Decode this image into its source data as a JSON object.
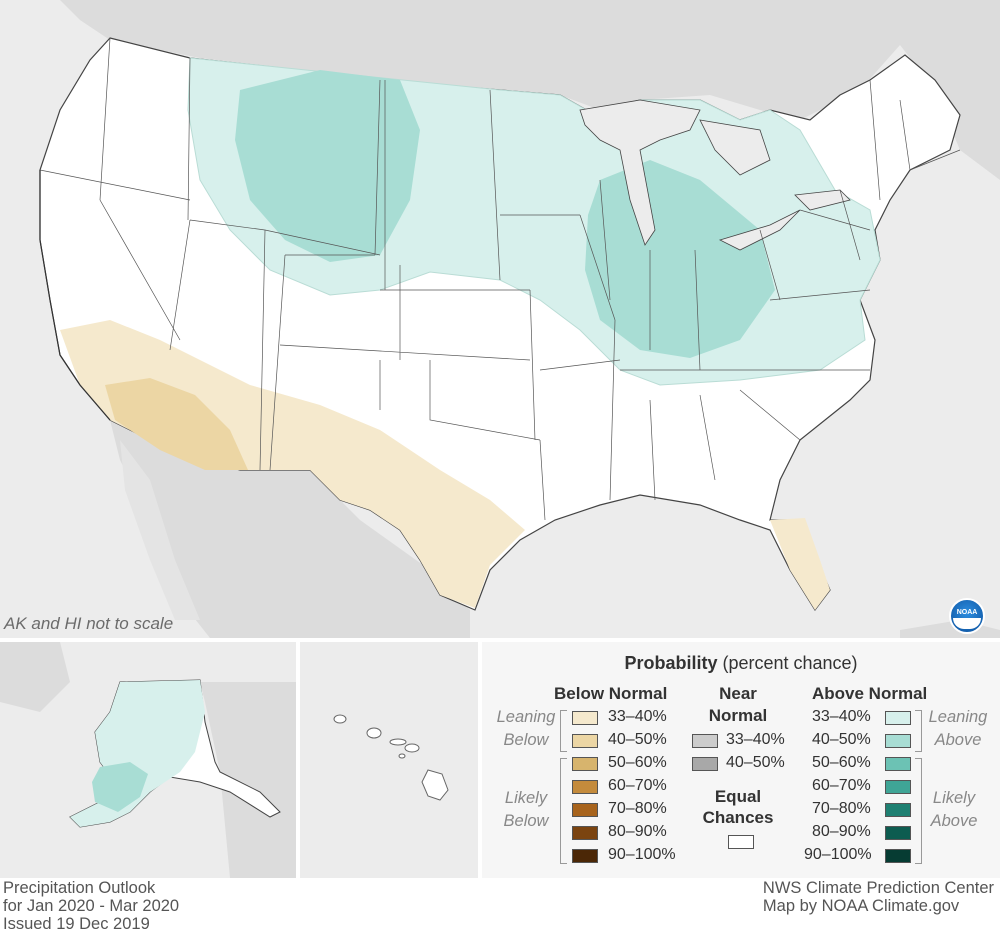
{
  "map": {
    "scale_note": "AK and HI not to scale",
    "logo_text": "NOAA"
  },
  "legend": {
    "title_bold": "Probability",
    "title_rest": "(percent chance)",
    "below": {
      "header": "Below Normal",
      "items": [
        "33–40%",
        "40–50%",
        "50–60%",
        "60–70%",
        "70–80%",
        "80–90%",
        "90–100%"
      ],
      "colors": [
        "#f5e9cd",
        "#ecd6a4",
        "#d7b46d",
        "#c48b3c",
        "#a8641d",
        "#7b4410",
        "#4b2706"
      ],
      "leaning_label": [
        "Leaning",
        "Below"
      ],
      "likely_label": [
        "Likely",
        "Below"
      ]
    },
    "near": {
      "header": [
        "Near",
        "Normal"
      ],
      "items": [
        "33–40%",
        "40–50%"
      ],
      "colors": [
        "#cccccc",
        "#a8a8a8"
      ],
      "equal_label": [
        "Equal",
        "Chances"
      ],
      "equal_color": "#ffffff"
    },
    "above": {
      "header": "Above Normal",
      "items": [
        "33–40%",
        "40–50%",
        "50–60%",
        "60–70%",
        "70–80%",
        "80–90%",
        "90–100%"
      ],
      "colors": [
        "#d7f0ec",
        "#a8ddd4",
        "#6cc2b4",
        "#3fa596",
        "#1f8072",
        "#0d5c50",
        "#063c33"
      ],
      "leaning_label": [
        "Leaning",
        "Above"
      ],
      "likely_label": [
        "Likely",
        "Above"
      ]
    }
  },
  "footer": {
    "left": [
      "Precipitation Outlook",
      "for Jan 2020 - Mar 2020",
      "Issued 19 Dec 2019"
    ],
    "right": [
      "NWS Climate Prediction Center",
      "Map by NOAA Climate.gov"
    ]
  },
  "colors": {
    "land_outside": "#dcdcdc",
    "water": "#ececec",
    "equal_chances": "#ffffff",
    "above_leaning": "#d7f0ec",
    "above_40_50": "#a8ddd4",
    "below_leaning": "#f5e9cd",
    "below_40_50": "#ecd6a4"
  }
}
